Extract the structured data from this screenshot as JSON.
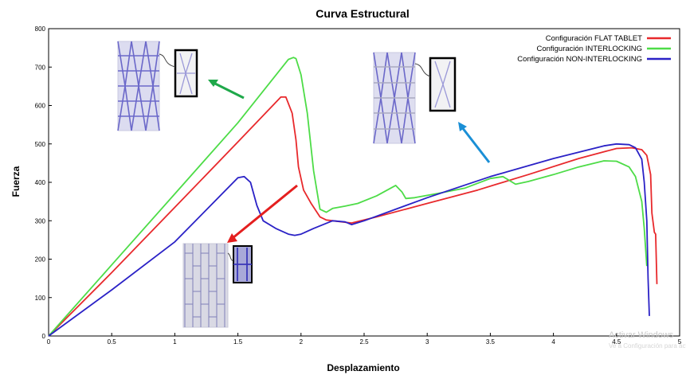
{
  "chart_data": {
    "type": "line",
    "title": "Curva Estructural",
    "xlabel": "Desplazamiento",
    "ylabel": "Fuerza",
    "xlim": [
      0,
      5
    ],
    "ylim": [
      0,
      800
    ],
    "x_ticks": [
      "0",
      "0.5",
      "1",
      "1.5",
      "2",
      "2.5",
      "3",
      "3.5",
      "4",
      "4.5",
      "5"
    ],
    "y_ticks": [
      "0",
      "100",
      "200",
      "300",
      "400",
      "500",
      "600",
      "700",
      "800"
    ],
    "grid": false,
    "legend_position": "top-right",
    "series": [
      {
        "name": "Configuración FLAT TABLET",
        "color": "#e8292c",
        "points": [
          [
            0,
            0
          ],
          [
            0.5,
            165
          ],
          [
            1,
            335
          ],
          [
            1.5,
            505
          ],
          [
            1.84,
            622
          ],
          [
            1.88,
            622
          ],
          [
            1.93,
            580
          ],
          [
            1.96,
            510
          ],
          [
            1.98,
            440
          ],
          [
            2.02,
            380
          ],
          [
            2.08,
            345
          ],
          [
            2.15,
            310
          ],
          [
            2.2,
            302
          ],
          [
            2.3,
            298
          ],
          [
            2.4,
            294
          ],
          [
            2.6,
            310
          ],
          [
            3,
            345
          ],
          [
            3.4,
            380
          ],
          [
            3.55,
            395
          ],
          [
            3.8,
            420
          ],
          [
            4.2,
            462
          ],
          [
            4.5,
            488
          ],
          [
            4.62,
            490
          ],
          [
            4.7,
            485
          ],
          [
            4.74,
            470
          ],
          [
            4.77,
            420
          ],
          [
            4.78,
            320
          ],
          [
            4.8,
            270
          ],
          [
            4.81,
            265
          ],
          [
            4.82,
            135
          ]
        ]
      },
      {
        "name": "Configuración INTERLOCKING",
        "color": "#4ddc47",
        "points": [
          [
            0,
            0
          ],
          [
            0.5,
            185
          ],
          [
            1,
            370
          ],
          [
            1.5,
            555
          ],
          [
            1.9,
            720
          ],
          [
            1.94,
            725
          ],
          [
            1.96,
            722
          ],
          [
            2,
            680
          ],
          [
            2.05,
            580
          ],
          [
            2.1,
            430
          ],
          [
            2.15,
            330
          ],
          [
            2.2,
            322
          ],
          [
            2.25,
            332
          ],
          [
            2.35,
            338
          ],
          [
            2.45,
            345
          ],
          [
            2.6,
            365
          ],
          [
            2.75,
            392
          ],
          [
            2.8,
            375
          ],
          [
            2.83,
            358
          ],
          [
            2.9,
            360
          ],
          [
            3.1,
            372
          ],
          [
            3.3,
            385
          ],
          [
            3.5,
            410
          ],
          [
            3.6,
            415
          ],
          [
            3.7,
            395
          ],
          [
            3.8,
            402
          ],
          [
            4,
            420
          ],
          [
            4.2,
            440
          ],
          [
            4.4,
            456
          ],
          [
            4.5,
            455
          ],
          [
            4.6,
            440
          ],
          [
            4.65,
            415
          ],
          [
            4.7,
            350
          ],
          [
            4.72,
            280
          ],
          [
            4.74,
            182
          ]
        ]
      },
      {
        "name": "Configuración NON-INTERLOCKING",
        "color": "#2a21c6",
        "points": [
          [
            0,
            0
          ],
          [
            0.5,
            120
          ],
          [
            1,
            245
          ],
          [
            1.3,
            345
          ],
          [
            1.5,
            412
          ],
          [
            1.55,
            415
          ],
          [
            1.6,
            400
          ],
          [
            1.65,
            340
          ],
          [
            1.7,
            300
          ],
          [
            1.8,
            280
          ],
          [
            1.9,
            265
          ],
          [
            1.95,
            262
          ],
          [
            2,
            265
          ],
          [
            2.1,
            280
          ],
          [
            2.25,
            300
          ],
          [
            2.35,
            297
          ],
          [
            2.4,
            290
          ],
          [
            2.5,
            300
          ],
          [
            3,
            360
          ],
          [
            3.5,
            415
          ],
          [
            4,
            462
          ],
          [
            4.4,
            495
          ],
          [
            4.5,
            500
          ],
          [
            4.6,
            498
          ],
          [
            4.65,
            490
          ],
          [
            4.7,
            460
          ],
          [
            4.72,
            400
          ],
          [
            4.74,
            300
          ],
          [
            4.75,
            150
          ],
          [
            4.76,
            52
          ]
        ]
      }
    ],
    "annotations": [
      {
        "series": "Configuración INTERLOCKING",
        "description": "inset lattice image with green arrow"
      },
      {
        "series": "Configuración FLAT TABLET",
        "description": "inset brick-pattern image with red arrow"
      },
      {
        "series": "Configuración NON-INTERLOCKING",
        "description": "inset lattice image with blue arrow"
      }
    ]
  },
  "overlay": {
    "watermark_line1": "Activar Windows",
    "watermark_line2": "Ve a Configuración para activar Windows."
  }
}
